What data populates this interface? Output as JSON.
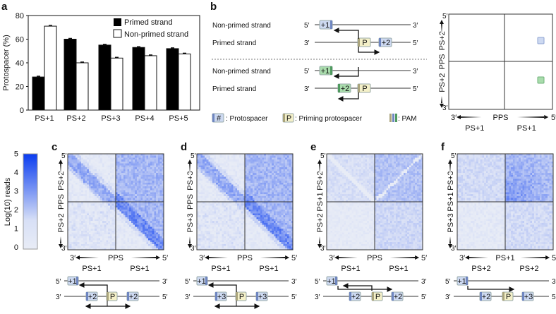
{
  "panel_labels": {
    "a": "a",
    "b": "b",
    "c": "c",
    "d": "d",
    "e": "e",
    "f": "f"
  },
  "chart_data": {
    "type": "bar",
    "title": "",
    "xlabel": "",
    "ylabel": "Protospacer (%)",
    "ylim": [
      0,
      80
    ],
    "yticks": [
      "0",
      "20",
      "40",
      "60",
      "80"
    ],
    "categories": [
      "PS+1",
      "PS+2",
      "PS+3",
      "PS+4",
      "PS+5"
    ],
    "legend_position": "top-right",
    "series": [
      {
        "name": "Primed strand",
        "color": "#000000",
        "values": [
          28,
          60,
          55,
          53,
          52
        ]
      },
      {
        "name": "Non-primed strand",
        "color": "#ffffff",
        "values": [
          71,
          40,
          44,
          46,
          47.5
        ]
      }
    ]
  },
  "panel_b": {
    "rows": [
      "Non-primed strand",
      "Primed strand",
      "Non-primed strand",
      "Primed strand"
    ],
    "ends": {
      "five": "5′",
      "three": "3′"
    },
    "box_plus1": "+1",
    "box_plus2": "+2",
    "box_p": "P",
    "legend": {
      "proto_symbol": "#",
      "proto": ": Protospacer",
      "priming_symbol": "P",
      "priming": ": Priming protospacer",
      "pam": ": PAM"
    },
    "schema": {
      "y_top": "PS+2",
      "y_mid": "PPS",
      "y_bottom": "PS+2",
      "x_left": "PS+1",
      "x_mid": "PPS",
      "x_right": "PS+1",
      "five": "5′",
      "three": "3′"
    }
  },
  "colorbar": {
    "label": "Log(10) reads",
    "ticks": [
      "0",
      "1",
      "2",
      "3",
      "4",
      "5"
    ],
    "min_color": "#e8ecf6",
    "max_color": "#0a3cf0"
  },
  "heatmaps": [
    {
      "id": "c",
      "y_top": "PS+2",
      "y_mid": "PPS",
      "y_bottom": "PS+2",
      "x_mid": "PPS",
      "x_left": "PS+1",
      "x_right": "PS+1",
      "diagram": {
        "top": [
          "+1"
        ],
        "bottom": [
          "+2",
          "P",
          "+2"
        ]
      }
    },
    {
      "id": "d",
      "y_top": "PS+3",
      "y_mid": "PPS",
      "y_bottom": "PS+3",
      "x_mid": "PPS",
      "x_left": "PS+1",
      "x_right": "PS+1",
      "diagram": {
        "top": [
          "+1"
        ],
        "bottom": [
          "+3",
          "P",
          "+3"
        ]
      }
    },
    {
      "id": "e",
      "y_top": "PS+2",
      "y_mid": "PS+1",
      "y_bottom": "PS+2",
      "x_mid": "PPS",
      "x_left": "PS+1",
      "x_right": "PS+1",
      "diagram": {
        "top": [
          "+1"
        ],
        "bottom": [
          "+2",
          "P",
          "+2"
        ]
      }
    },
    {
      "id": "f",
      "y_top": "PS+3",
      "y_mid": "PS+1",
      "y_bottom": "PS+3",
      "x_mid": "PS+1",
      "x_left": "PS+2",
      "x_right": "PS+2",
      "diagram": {
        "top": [
          "+1"
        ],
        "bottom": [
          "+2",
          "P",
          "+3"
        ]
      }
    }
  ],
  "colors": {
    "proto_fill": "#cdd9f1",
    "proto_pam": "#6f86c0",
    "green_fill": "#a9dcac",
    "green_pam": "#4f9a5f",
    "p_fill": "#f4f0c8",
    "p_pam": "#aaa47c"
  }
}
